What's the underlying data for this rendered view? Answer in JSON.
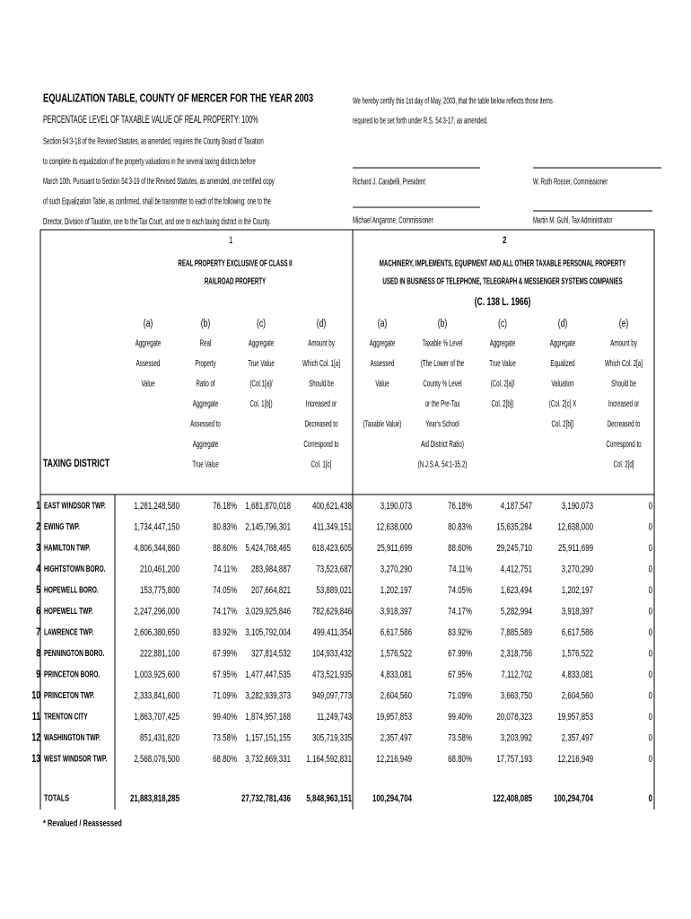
{
  "header": {
    "title": "EQUALIZATION TABLE, COUNTY OF MERCER FOR THE YEAR 2003",
    "subtitle": "PERCENTAGE LEVEL OF TAXABLE VALUE OF REAL PROPERTY: 100%",
    "statute_lines": [
      "Section 54:3-18 of the Revised Statutes, as amended, requires the County Board of Taxation",
      "to complete its equalization of the property valuations in the several taxing districts before",
      "March 10th.  Pursuant to Section 54:3-19 of the Revised Statutes, as amended, one certified copy",
      "of such Equalization Table, as confirmed, shall be transmitter to each of the following: one to the",
      "Director, Division of Taxation, one to the Tax Court, and one to each taxing district in the County."
    ],
    "certify_lines": [
      "We hereby certify this 1st day of  May, 2003, that the table below reflects those items",
      "required to be set forth under R.S. 54:3-17, as amended."
    ],
    "signatures": [
      "Richard J. Carabelli, President",
      "W. Ruth Rosser, Commissioner",
      "Michael Angarone, Commissioner",
      "Martin M. Guhl, Tax Administrator"
    ]
  },
  "table": {
    "district_heading": "TAXING DISTRICT",
    "group1": {
      "number": "1",
      "heading": [
        "REAL PROPERTY EXCLUSIVE OF CLASS II",
        "RAILROAD PROPERTY"
      ],
      "columns": [
        {
          "letter": "(a)",
          "description": [
            "Aggregate",
            "Assessed",
            "Value"
          ]
        },
        {
          "letter": "(b)",
          "description": [
            "Real",
            "Property",
            "Ratio of",
            "Aggregate",
            "Assessed to",
            "Aggregate",
            "True Value"
          ]
        },
        {
          "letter": "(c)",
          "description": [
            "Aggregate",
            "True Value",
            "(Col.1[a]/",
            "Col. 1[b])"
          ]
        },
        {
          "letter": "(d)",
          "description": [
            "Amount by",
            "Which Col. 1[a]",
            "Should be",
            "Increased or",
            "Decreased to",
            "Correspond to",
            "Col. 1[c]"
          ]
        }
      ]
    },
    "group2": {
      "number": "2",
      "heading": [
        "MACHINERY, IMPLEMENTS, EQUIPMENT AND ALL OTHER TAXABLE PERSONAL PROPERTY",
        "USED IN BUSINESS OF TELEPHONE, TELEGRAPH & MESSENGER SYSTEMS COMPANIES"
      ],
      "citation": "(C. 138 L. 1966)",
      "columns": [
        {
          "letter": "(a)",
          "description": [
            "Aggregate",
            "Assessed",
            "Value"
          ],
          "note": "(Taxable Value)"
        },
        {
          "letter": "(b)",
          "description": [
            "Taxable % Level",
            "(The Lower of the",
            "County % Level",
            "or the Pre-Tax",
            "Year's School",
            "Aid District Ratio)",
            "(N.J.S.A. 54:1-35.2)"
          ]
        },
        {
          "letter": "(c)",
          "description": [
            "Aggregate",
            "True Value",
            "(Col. 2[a]/",
            "Col. 2[b])"
          ]
        },
        {
          "letter": "(d)",
          "description": [
            "Aggregate",
            "Equalized",
            "Valuation",
            "(Col. 2[c] X",
            "Col. 2[b])"
          ]
        },
        {
          "letter": "(e)",
          "description": [
            "Amount by",
            "Which Col. 2[a]",
            "Should be",
            "Increased or",
            "Decreased to",
            "Correspond to",
            "Col. 2[d]"
          ]
        }
      ]
    },
    "rows": [
      {
        "number": "1",
        "district": "EAST WINDSOR TWP.",
        "values": [
          "1,281,248,580",
          "76.18%",
          "1,681,870,018",
          "400,621,438",
          "3,190,073",
          "76.18%",
          "4,187,547",
          "3,190,073",
          "0"
        ]
      },
      {
        "number": "2",
        "district": "EWING TWP.",
        "values": [
          "1,734,447,150",
          "80.83%",
          "2,145,796,301",
          "411,349,151",
          "12,638,000",
          "80.83%",
          "15,635,284",
          "12,638,000",
          "0"
        ]
      },
      {
        "number": "3",
        "district": "HAMILTON TWP.",
        "values": [
          "4,806,344,860",
          "88.60%",
          "5,424,768,465",
          "618,423,605",
          "25,911,699",
          "88.60%",
          "29,245,710",
          "25,911,699",
          "0"
        ]
      },
      {
        "number": "4",
        "district": "HIGHTSTOWN BORO.",
        "values": [
          "210,461,200",
          "74.11%",
          "283,984,887",
          "73,523,687",
          "3,270,290",
          "74.11%",
          "4,412,751",
          "3,270,290",
          "0"
        ]
      },
      {
        "number": "5",
        "district": "HOPEWELL BORO.",
        "values": [
          "153,775,800",
          "74.05%",
          "207,664,821",
          "53,889,021",
          "1,202,197",
          "74.05%",
          "1,623,494",
          "1,202,197",
          "0"
        ]
      },
      {
        "number": "6",
        "district": "HOPEWELL TWP.",
        "values": [
          "2,247,296,000",
          "74.17%",
          "3,029,925,846",
          "782,629,846",
          "3,918,397",
          "74.17%",
          "5,282,994",
          "3,918,397",
          "0"
        ]
      },
      {
        "number": "7",
        "district": "LAWRENCE TWP.",
        "values": [
          "2,606,380,650",
          "83.92%",
          "3,105,792,004",
          "499,411,354",
          "6,617,586",
          "83.92%",
          "7,885,589",
          "6,617,586",
          "0"
        ]
      },
      {
        "number": "8",
        "district": "PENNINGTON BORO.",
        "values": [
          "222,881,100",
          "67.99%",
          "327,814,532",
          "104,933,432",
          "1,576,522",
          "67.99%",
          "2,318,756",
          "1,576,522",
          "0"
        ]
      },
      {
        "number": "9",
        "district": "PRINCETON BORO.",
        "values": [
          "1,003,925,600",
          "67.95%",
          "1,477,447,535",
          "473,521,935",
          "4,833,081",
          "67.95%",
          "7,112,702",
          "4,833,081",
          "0"
        ]
      },
      {
        "number": "10",
        "district": "PRINCETON TWP.",
        "values": [
          "2,333,841,600",
          "71.09%",
          "3,282,939,373",
          "949,097,773",
          "2,604,560",
          "71.09%",
          "3,663,750",
          "2,604,560",
          "0"
        ]
      },
      {
        "number": "11",
        "district": "TRENTON CITY",
        "values": [
          "1,863,707,425",
          "99.40%",
          "1,874,957,168",
          "11,249,743",
          "19,957,853",
          "99.40%",
          "20,078,323",
          "19,957,853",
          "0"
        ]
      },
      {
        "number": "12",
        "district": "WASHINGTON TWP.",
        "values": [
          "851,431,820",
          "73.58%",
          "1,157,151,155",
          "305,719,335",
          "2,357,497",
          "73.58%",
          "3,203,992",
          "2,357,497",
          "0"
        ]
      },
      {
        "number": "13",
        "district": "WEST WINDSOR TWP.",
        "values": [
          "2,568,076,500",
          "68.80%",
          "3,732,669,331",
          "1,164,592,831",
          "12,216,949",
          "68.80%",
          "17,757,193",
          "12,216,949",
          "0"
        ]
      }
    ],
    "totals": {
      "label": "TOTALS",
      "values": {
        "1a": "21,883,818,285",
        "1c": "27,732,781,436",
        "1d": "5,848,963,151",
        "2a": "100,294,704",
        "2c": "122,408,085",
        "2d": "100,294,704",
        "2e": "0"
      }
    },
    "footnote": "* Revalued / Reassessed"
  }
}
